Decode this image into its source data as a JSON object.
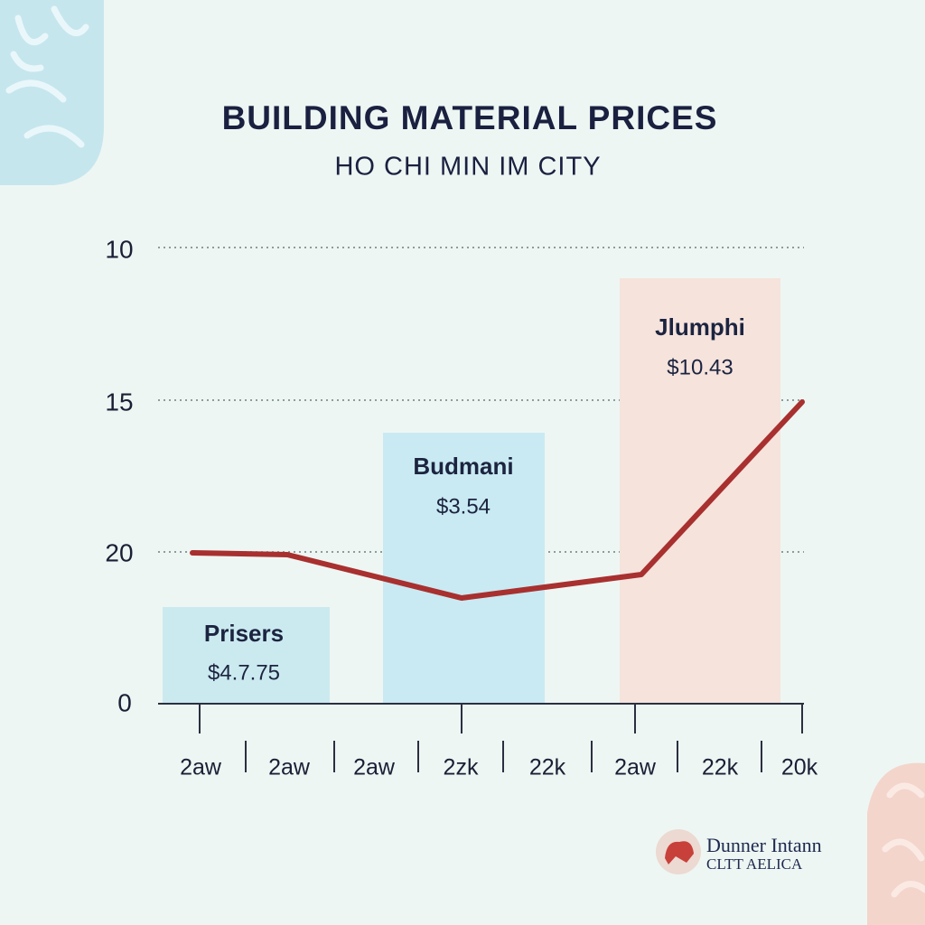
{
  "header": {
    "title": "BUILDING MATERIAL PRICES",
    "subtitle": "HO CHI MIN IM CITY"
  },
  "y_axis_labels": [
    "10",
    "15",
    "20",
    "0"
  ],
  "bars": [
    {
      "name": "Prisers",
      "price": "$4.7.75"
    },
    {
      "name": "Budmani",
      "price": "$3.54"
    },
    {
      "name": "Jlumphi",
      "price": "$10.43"
    }
  ],
  "x_axis_labels": [
    "2aw",
    "2aw",
    "2aw",
    "2zk",
    "22k",
    "2aw",
    "22k",
    "20k"
  ],
  "logo": {
    "line1": "Dunner Intann",
    "line2": "CLTT AELICA"
  }
}
